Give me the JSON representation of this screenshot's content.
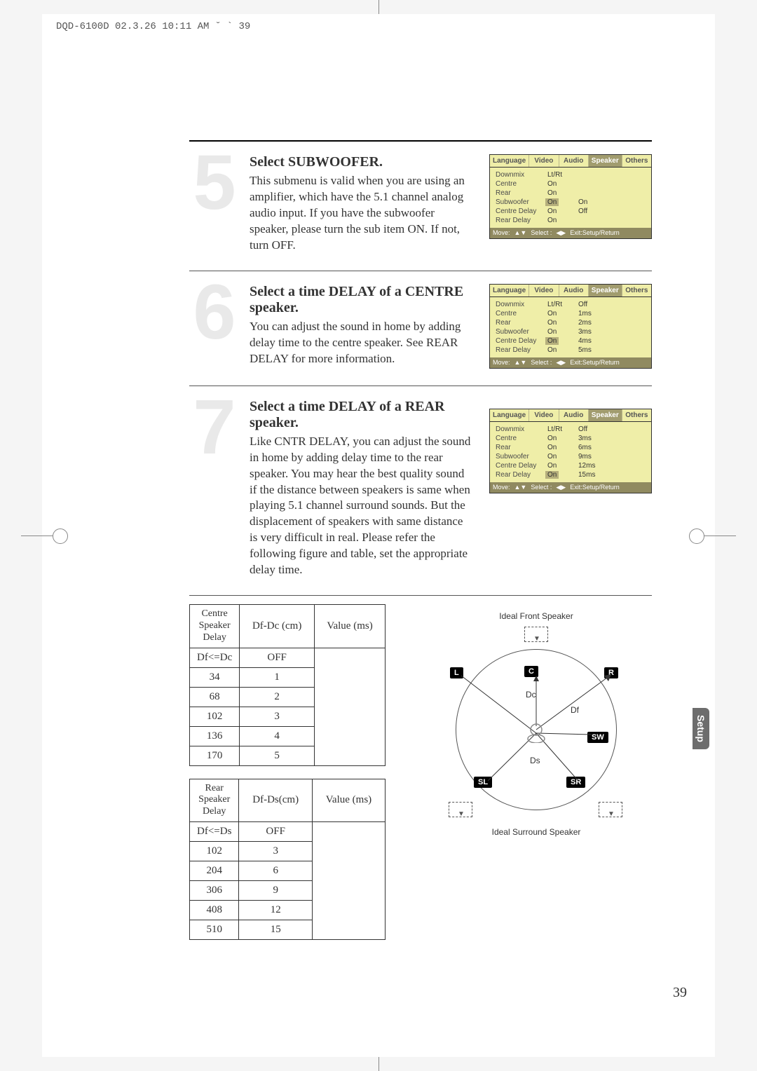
{
  "header": "DQD-6100D  02.3.26 10:11 AM  ˘  `  39",
  "steps": [
    {
      "num": "5",
      "title": "Select SUBWOOFER.",
      "text": "This submenu is valid when you are using an amplifier, which have the 5.1 channel analog audio input. If you have the subwoofer speaker, please turn the sub item ON. If not, turn OFF.",
      "menu": {
        "tabs": [
          "Language",
          "Video",
          "Audio",
          "Speaker",
          "Others"
        ],
        "activeTab": 3,
        "rows": [
          {
            "label": "Downmix",
            "v1": "Lt/Rt",
            "v2": "",
            "hl": 0
          },
          {
            "label": "Centre",
            "v1": "On",
            "v2": "",
            "hl": 0
          },
          {
            "label": "Rear",
            "v1": "On",
            "v2": "",
            "hl": 0
          },
          {
            "label": "Subwoofer",
            "v1": "On",
            "v2": "On",
            "hl": 1
          },
          {
            "label": "Centre Delay",
            "v1": "On",
            "v2": "Off",
            "hl": 0
          },
          {
            "label": "Rear Delay",
            "v1": "On",
            "v2": "",
            "hl": 0
          }
        ]
      }
    },
    {
      "num": "6",
      "title": "Select a time DELAY of a CENTRE speaker.",
      "text": "You can adjust the sound in home by adding delay time to the centre speaker. See REAR DELAY for more information.",
      "menu": {
        "tabs": [
          "Language",
          "Video",
          "Audio",
          "Speaker",
          "Others"
        ],
        "activeTab": 3,
        "rows": [
          {
            "label": "Downmix",
            "v1": "Lt/Rt",
            "v2": "Off",
            "hl": 0
          },
          {
            "label": "Centre",
            "v1": "On",
            "v2": "1ms",
            "hl": 0
          },
          {
            "label": "Rear",
            "v1": "On",
            "v2": "2ms",
            "hl": 0
          },
          {
            "label": "Subwoofer",
            "v1": "On",
            "v2": "3ms",
            "hl": 0
          },
          {
            "label": "Centre Delay",
            "v1": "On",
            "v2": "4ms",
            "hl": 1
          },
          {
            "label": "Rear Delay",
            "v1": "On",
            "v2": "5ms",
            "hl": 0
          }
        ]
      }
    },
    {
      "num": "7",
      "title": "Select a time DELAY of a REAR speaker.",
      "text": "Like CNTR DELAY, you can adjust the sound in home by adding delay time to the rear speaker. You may hear the best quality sound if the distance between speakers is same when playing 5.1 channel surround sounds. But the displacement of speakers with same distance is very difficult in real. Please refer the following figure and table, set the appropriate delay time.",
      "menu": {
        "tabs": [
          "Language",
          "Video",
          "Audio",
          "Speaker",
          "Others"
        ],
        "activeTab": 3,
        "rows": [
          {
            "label": "Downmix",
            "v1": "Lt/Rt",
            "v2": "Off",
            "hl": 0
          },
          {
            "label": "Centre",
            "v1": "On",
            "v2": "3ms",
            "hl": 0
          },
          {
            "label": "Rear",
            "v1": "On",
            "v2": "6ms",
            "hl": 0
          },
          {
            "label": "Subwoofer",
            "v1": "On",
            "v2": "9ms",
            "hl": 0
          },
          {
            "label": "Centre Delay",
            "v1": "On",
            "v2": "12ms",
            "hl": 0
          },
          {
            "label": "Rear Delay",
            "v1": "On",
            "v2": "15ms",
            "hl": 1
          }
        ]
      }
    }
  ],
  "menuFooter": {
    "move": "Move:",
    "select": "Select :",
    "exit": "Exit:Setup/Return"
  },
  "centreTable": {
    "side": "Centre Speaker Delay",
    "head": [
      "Df-Dc (cm)",
      "Value (ms)"
    ],
    "rows": [
      [
        "Df<=Dc",
        "OFF"
      ],
      [
        "34",
        "1"
      ],
      [
        "68",
        "2"
      ],
      [
        "102",
        "3"
      ],
      [
        "136",
        "4"
      ],
      [
        "170",
        "5"
      ]
    ]
  },
  "rearTable": {
    "side": "Rear Speaker Delay",
    "head": [
      "Df-Ds(cm)",
      "Value (ms)"
    ],
    "rows": [
      [
        "Df<=Ds",
        "OFF"
      ],
      [
        "102",
        "3"
      ],
      [
        "204",
        "6"
      ],
      [
        "306",
        "9"
      ],
      [
        "408",
        "12"
      ],
      [
        "510",
        "15"
      ]
    ]
  },
  "diagram": {
    "topLabel": "Ideal Front Speaker",
    "bottomLabel": "Ideal Surround Speaker",
    "spk": {
      "L": "L",
      "C": "C",
      "R": "R",
      "SW": "SW",
      "SL": "SL",
      "SR": "SR",
      "Dc": "Dc",
      "Df": "Df",
      "Ds": "Ds"
    }
  },
  "sideTab": "Setup",
  "pageNum": "39"
}
